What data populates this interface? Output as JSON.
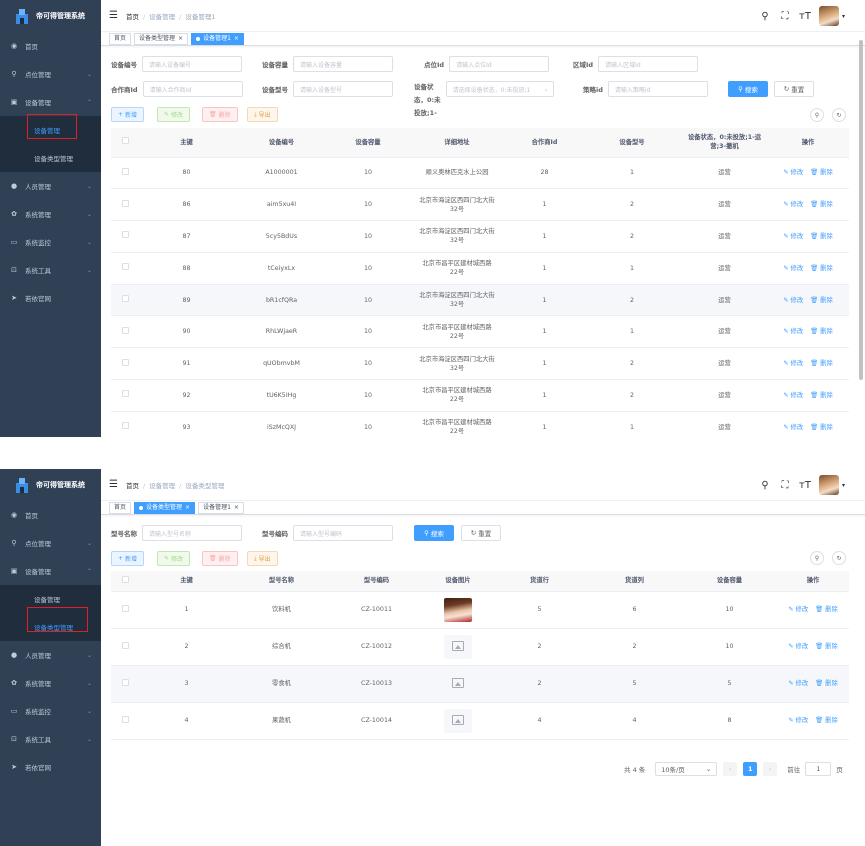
{
  "app": {
    "title": "帝可得管理系统"
  },
  "sidebar": {
    "items": [
      {
        "label": "首页",
        "icon": "dashboard-icon"
      },
      {
        "label": "点位管理",
        "icon": "location-icon"
      },
      {
        "label": "设备管理",
        "icon": "device-icon"
      },
      {
        "label": "人员管理",
        "icon": "user-icon"
      },
      {
        "label": "系统管理",
        "icon": "gear-icon"
      },
      {
        "label": "系统监控",
        "icon": "monitor-icon"
      },
      {
        "label": "系统工具",
        "icon": "tool-icon"
      },
      {
        "label": "若依官网",
        "icon": "send-icon"
      }
    ],
    "sub_items": [
      {
        "label": "设备管理"
      },
      {
        "label": "设备类型管理"
      }
    ]
  },
  "page1": {
    "breadcrumb": [
      "首页",
      "设备管理",
      "设备管理1"
    ],
    "tags": [
      {
        "label": "首页"
      },
      {
        "label": "设备类型管理"
      },
      {
        "label": "设备管理1"
      }
    ],
    "search": {
      "device_no": {
        "label": "设备编号",
        "placeholder": "请输入设备编号"
      },
      "capacity": {
        "label": "设备容量",
        "placeholder": "请输入设备容量"
      },
      "node_id": {
        "label": "点位Id",
        "placeholder": "请输入点位Id"
      },
      "region_id": {
        "label": "区域Id",
        "placeholder": "请输入区域Id"
      },
      "partner_id": {
        "label": "合作商Id",
        "placeholder": "请输入合作商Id"
      },
      "model": {
        "label": "设备型号",
        "placeholder": "请输入设备型号"
      },
      "status": {
        "label": "设备状",
        "label2": "态，0:未",
        "label3": "投放;1-",
        "placeholder": "请选择设备状态，0:未投放;1"
      },
      "policy_id": {
        "label": "策略id",
        "placeholder": "请输入策略id"
      },
      "search_btn": "搜索",
      "reset_btn": "重置"
    },
    "toolbar": {
      "add": "新增",
      "edit": "修改",
      "delete": "删除",
      "export": "导出"
    },
    "columns": [
      "主键",
      "设备编号",
      "设备容量",
      "详细地址",
      "合作商Id",
      "设备型号",
      "设备状态，0:未投放;1-运营;3-撤机",
      "操作"
    ],
    "rows": [
      {
        "id": "80",
        "no": "A1000001",
        "cap": "10",
        "addr": "顺义奥林匹克水上公园",
        "partner": "28",
        "model": "1",
        "status": "运营"
      },
      {
        "id": "86",
        "no": "aim5xu4I",
        "cap": "10",
        "addr": "北京市海淀区西四门北大街32号",
        "partner": "1",
        "model": "2",
        "status": "运营"
      },
      {
        "id": "87",
        "no": "5cy5BdUs",
        "cap": "10",
        "addr": "北京市海淀区西四门北大街32号",
        "partner": "1",
        "model": "2",
        "status": "运营"
      },
      {
        "id": "88",
        "no": "tCeiyxLx",
        "cap": "10",
        "addr": "北京市昌平区建材城西路22号",
        "partner": "1",
        "model": "1",
        "status": "运营"
      },
      {
        "id": "89",
        "no": "bR1cfQRa",
        "cap": "10",
        "addr": "北京市海淀区西四门北大街32号",
        "partner": "1",
        "model": "2",
        "status": "运营"
      },
      {
        "id": "90",
        "no": "RhLWjaeR",
        "cap": "10",
        "addr": "北京市昌平区建材城西路22号",
        "partner": "1",
        "model": "1",
        "status": "运营"
      },
      {
        "id": "91",
        "no": "qUObmvbM",
        "cap": "10",
        "addr": "北京市海淀区西四门北大街32号",
        "partner": "1",
        "model": "2",
        "status": "运营"
      },
      {
        "id": "92",
        "no": "tU6K5IHg",
        "cap": "10",
        "addr": "北京市昌平区建材城西路22号",
        "partner": "1",
        "model": "2",
        "status": "运营"
      },
      {
        "id": "93",
        "no": "iSzMcQXJ",
        "cap": "10",
        "addr": "北京市昌平区建材城西路22号",
        "partner": "1",
        "model": "1",
        "status": "运营"
      }
    ],
    "edit_label": "修改",
    "delete_label": "删除"
  },
  "page2": {
    "breadcrumb": [
      "首页",
      "设备管理",
      "设备类型管理"
    ],
    "tags": [
      {
        "label": "首页"
      },
      {
        "label": "设备类型管理"
      },
      {
        "label": "设备管理1"
      }
    ],
    "search": {
      "model_name": {
        "label": "型号名称",
        "placeholder": "请输入型号名称"
      },
      "model_code": {
        "label": "型号编码",
        "placeholder": "请输入型号编码"
      },
      "search_btn": "搜索",
      "reset_btn": "重置"
    },
    "toolbar": {
      "add": "新增",
      "edit": "修改",
      "delete": "删除",
      "export": "导出"
    },
    "columns": [
      "主键",
      "型号名称",
      "型号编码",
      "设备图片",
      "货道行",
      "货道列",
      "设备容量",
      "操作"
    ],
    "rows": [
      {
        "id": "1",
        "name": "饮料机",
        "code": "CZ-10011",
        "rows": "5",
        "cols": "6",
        "cap": "10",
        "img": "photo"
      },
      {
        "id": "2",
        "name": "综合机",
        "code": "CZ-10012",
        "rows": "2",
        "cols": "2",
        "cap": "10",
        "img": "placeholder"
      },
      {
        "id": "3",
        "name": "零食机",
        "code": "CZ-10013",
        "rows": "2",
        "cols": "5",
        "cap": "5",
        "img": "placeholder"
      },
      {
        "id": "4",
        "name": "果蔬机",
        "code": "CZ-10014",
        "rows": "4",
        "cols": "4",
        "cap": "8",
        "img": "placeholder"
      }
    ],
    "pager": {
      "total": "共 4 条",
      "size": "10条/页",
      "current": "1",
      "goto": "前往",
      "goto_val": "1",
      "page_unit": "页"
    },
    "edit_label": "修改",
    "delete_label": "删除"
  },
  "colors": {
    "sidebar": "#304156",
    "primary": "#409eff",
    "highlight_box": "#e02020"
  }
}
